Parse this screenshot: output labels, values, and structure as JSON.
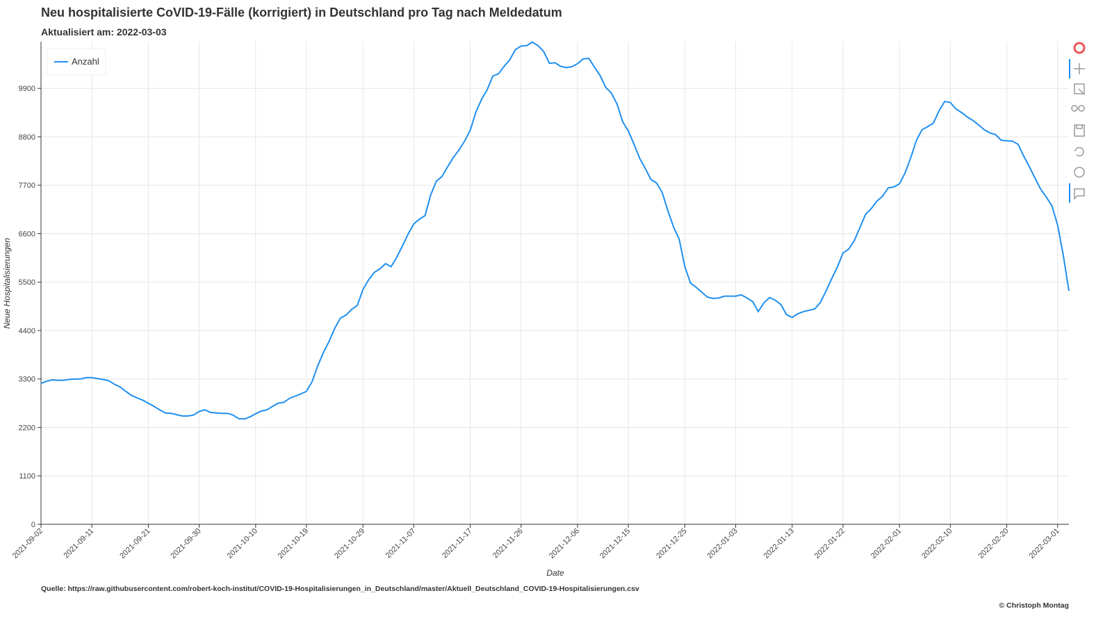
{
  "chart_data": {
    "type": "line",
    "title": "Neu hospitalisierte CoVID-19-Fälle (korrigiert) in Deutschland pro Tag nach Meldedatum",
    "subtitle": "Aktualisiert am: 2022-03-03",
    "xlabel": "Date",
    "ylabel": "Neue Hospitalisierungen",
    "source": "Quelle: https://raw.githubusercontent.com/robert-koch-institut/COVID-19-Hospitalisierungen_in_Deutschland/master/Aktuell_Deutschland_COVID-19-Hospitalisierungen.csv",
    "credit": "© Christoph Montag",
    "legend": "top-left",
    "grid": true,
    "xlim": [
      "2021-09-02",
      "2022-03-03"
    ],
    "xticks": [
      "2021-09-02",
      "2021-09-11",
      "2021-09-21",
      "2021-09-30",
      "2021-10-10",
      "2021-10-19",
      "2021-10-29",
      "2021-11-07",
      "2021-11-17",
      "2021-11-26",
      "2021-12-06",
      "2021-12-15",
      "2021-12-25",
      "2022-01-03",
      "2022-01-13",
      "2022-01-22",
      "2022-02-01",
      "2022-02-10",
      "2022-02-20",
      "2022-03-01"
    ],
    "ylim": [
      0,
      10960
    ],
    "yticks": [
      0,
      1100,
      2200,
      3300,
      4400,
      5500,
      6600,
      7700,
      8800,
      9900
    ],
    "x": [
      "2021-09-02",
      "2021-09-03",
      "2021-09-04",
      "2021-09-05",
      "2021-09-06",
      "2021-09-07",
      "2021-09-08",
      "2021-09-09",
      "2021-09-10",
      "2021-09-11",
      "2021-09-12",
      "2021-09-13",
      "2021-09-14",
      "2021-09-15",
      "2021-09-16",
      "2021-09-17",
      "2021-09-18",
      "2021-09-19",
      "2021-09-20",
      "2021-09-21",
      "2021-09-22",
      "2021-09-23",
      "2021-09-24",
      "2021-09-25",
      "2021-09-26",
      "2021-09-27",
      "2021-09-28",
      "2021-09-29",
      "2021-09-30",
      "2021-10-01",
      "2021-10-02",
      "2021-10-03",
      "2021-10-04",
      "2021-10-05",
      "2021-10-06",
      "2021-10-07",
      "2021-10-08",
      "2021-10-09",
      "2021-10-10",
      "2021-10-11",
      "2021-10-12",
      "2021-10-13",
      "2021-10-14",
      "2021-10-15",
      "2021-10-16",
      "2021-10-17",
      "2021-10-18",
      "2021-10-19",
      "2021-10-20",
      "2021-10-21",
      "2021-10-22",
      "2021-10-23",
      "2021-10-24",
      "2021-10-25",
      "2021-10-26",
      "2021-10-27",
      "2021-10-28",
      "2021-10-29",
      "2021-10-30",
      "2021-10-31",
      "2021-11-01",
      "2021-11-02",
      "2021-11-03",
      "2021-11-04",
      "2021-11-05",
      "2021-11-06",
      "2021-11-07",
      "2021-11-08",
      "2021-11-09",
      "2021-11-10",
      "2021-11-11",
      "2021-11-12",
      "2021-11-13",
      "2021-11-14",
      "2021-11-15",
      "2021-11-16",
      "2021-11-17",
      "2021-11-18",
      "2021-11-19",
      "2021-11-20",
      "2021-11-21",
      "2021-11-22",
      "2021-11-23",
      "2021-11-24",
      "2021-11-25",
      "2021-11-26",
      "2021-11-27",
      "2021-11-28",
      "2021-11-29",
      "2021-11-30",
      "2021-12-01",
      "2021-12-02",
      "2021-12-03",
      "2021-12-04",
      "2021-12-05",
      "2021-12-06",
      "2021-12-07",
      "2021-12-08",
      "2021-12-09",
      "2021-12-10",
      "2021-12-11",
      "2021-12-12",
      "2021-12-13",
      "2021-12-14",
      "2021-12-15",
      "2021-12-16",
      "2021-12-17",
      "2021-12-18",
      "2021-12-19",
      "2021-12-20",
      "2021-12-21",
      "2021-12-22",
      "2021-12-23",
      "2021-12-24",
      "2021-12-25",
      "2021-12-26",
      "2021-12-27",
      "2021-12-28",
      "2021-12-29",
      "2021-12-30",
      "2021-12-31",
      "2022-01-01",
      "2022-01-02",
      "2022-01-03",
      "2022-01-04",
      "2022-01-05",
      "2022-01-06",
      "2022-01-07",
      "2022-01-08",
      "2022-01-09",
      "2022-01-10",
      "2022-01-11",
      "2022-01-12",
      "2022-01-13",
      "2022-01-14",
      "2022-01-15",
      "2022-01-16",
      "2022-01-17",
      "2022-01-18",
      "2022-01-19",
      "2022-01-20",
      "2022-01-21",
      "2022-01-22",
      "2022-01-23",
      "2022-01-24",
      "2022-01-25",
      "2022-01-26",
      "2022-01-27",
      "2022-01-28",
      "2022-01-29",
      "2022-01-30",
      "2022-01-31",
      "2022-02-01",
      "2022-02-02",
      "2022-02-03",
      "2022-02-04",
      "2022-02-05",
      "2022-02-06",
      "2022-02-07",
      "2022-02-08",
      "2022-02-09",
      "2022-02-10",
      "2022-02-11",
      "2022-02-12",
      "2022-02-13",
      "2022-02-14",
      "2022-02-15",
      "2022-02-16",
      "2022-02-17",
      "2022-02-18",
      "2022-02-19",
      "2022-02-20",
      "2022-02-21",
      "2022-02-22",
      "2022-02-23",
      "2022-02-24",
      "2022-02-25",
      "2022-02-26",
      "2022-02-27",
      "2022-02-28",
      "2022-03-01",
      "2022-03-02",
      "2022-03-03"
    ],
    "series": [
      {
        "name": "Anzahl",
        "color": "#1e8ff0",
        "values": [
          3200,
          3250,
          3280,
          3270,
          3270,
          3290,
          3300,
          3300,
          3330,
          3330,
          3310,
          3290,
          3260,
          3180,
          3120,
          3020,
          2930,
          2870,
          2820,
          2750,
          2680,
          2600,
          2530,
          2520,
          2490,
          2460,
          2460,
          2480,
          2560,
          2600,
          2540,
          2530,
          2520,
          2520,
          2480,
          2400,
          2390,
          2440,
          2510,
          2570,
          2600,
          2680,
          2750,
          2770,
          2860,
          2910,
          2960,
          3020,
          3240,
          3600,
          3900,
          4150,
          4450,
          4680,
          4750,
          4880,
          4970,
          5330,
          5550,
          5720,
          5800,
          5920,
          5850,
          6070,
          6320,
          6590,
          6820,
          6930,
          7010,
          7480,
          7790,
          7900,
          8120,
          8330,
          8500,
          8700,
          8950,
          9360,
          9650,
          9870,
          10180,
          10230,
          10400,
          10550,
          10780,
          10860,
          10870,
          10950,
          10870,
          10740,
          10470,
          10480,
          10400,
          10370,
          10390,
          10460,
          10570,
          10580,
          10380,
          10190,
          9920,
          9790,
          9540,
          9140,
          8930,
          8630,
          8310,
          8080,
          7830,
          7750,
          7530,
          7120,
          6750,
          6470,
          5850,
          5480,
          5380,
          5270,
          5160,
          5130,
          5140,
          5180,
          5180,
          5180,
          5210,
          5140,
          5060,
          4830,
          5030,
          5150,
          5090,
          4990,
          4760,
          4700,
          4780,
          4830,
          4860,
          4890,
          5040,
          5300,
          5580,
          5840,
          6160,
          6250,
          6440,
          6740,
          7040,
          7170,
          7340,
          7450,
          7640,
          7660,
          7730,
          7980,
          8330,
          8720,
          8960,
          9030,
          9110,
          9390,
          9600,
          9580,
          9430,
          9350,
          9250,
          9170,
          9070,
          8960,
          8890,
          8850,
          8720,
          8710,
          8700,
          8630,
          8360,
          8120,
          7860,
          7610,
          7430,
          7230,
          6800,
          6110,
          5300
        ]
      }
    ]
  }
}
